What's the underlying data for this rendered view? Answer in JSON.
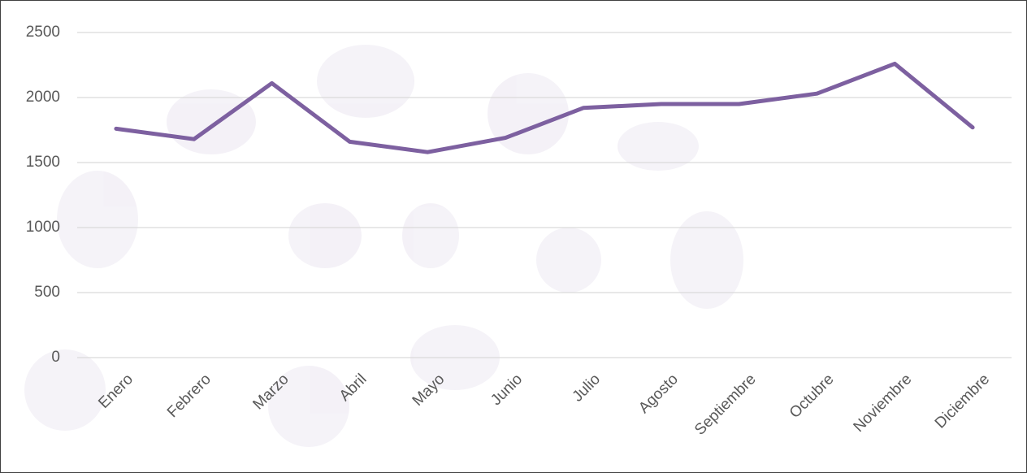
{
  "chart_data": {
    "type": "line",
    "categories": [
      "Enero",
      "Febrero",
      "Marzo",
      "Abril",
      "Mayo",
      "Junio",
      "Julio",
      "Agosto",
      "Septiembre",
      "Octubre",
      "Noviembre",
      "Diciembre"
    ],
    "values": [
      1760,
      1680,
      2110,
      1660,
      1580,
      1690,
      1920,
      1950,
      1950,
      2030,
      2260,
      1770
    ],
    "color": "#7d60a0",
    "ylim": [
      0,
      2500
    ],
    "yticks": [
      0,
      500,
      1000,
      1500,
      2000,
      2500
    ],
    "grid": true
  }
}
